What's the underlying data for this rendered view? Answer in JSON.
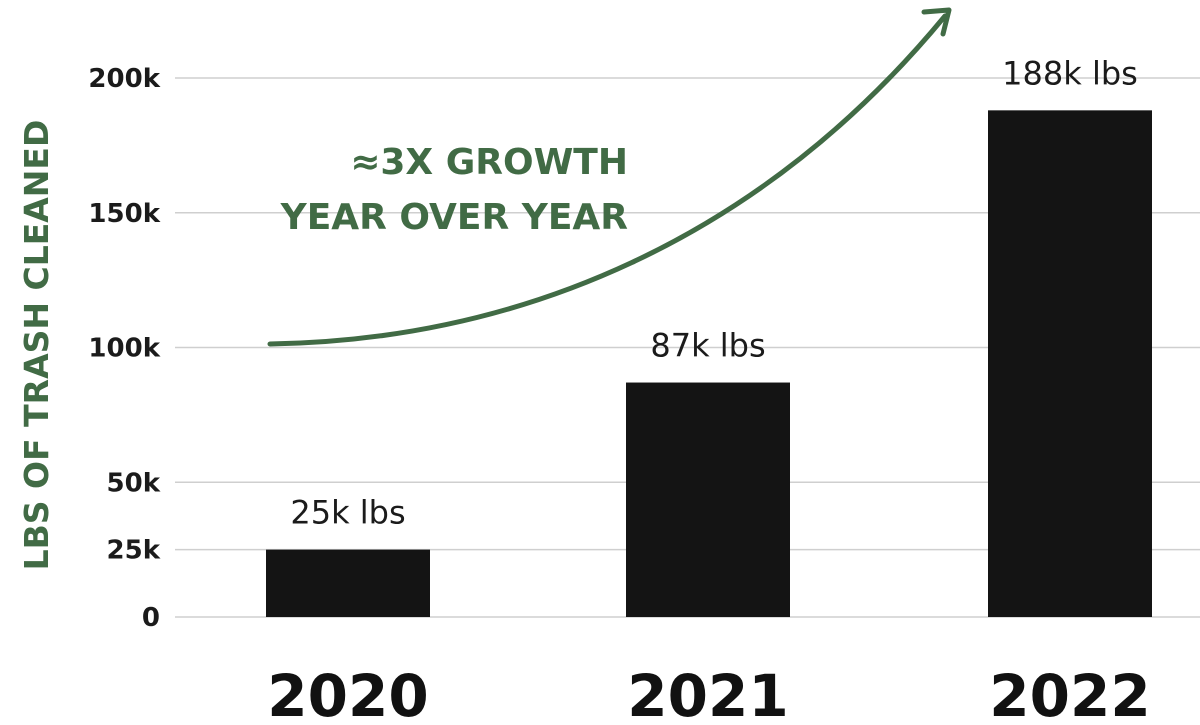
{
  "chart_data": {
    "type": "bar",
    "categories": [
      "2020",
      "2021",
      "2022"
    ],
    "values": [
      25000,
      87000,
      188000
    ],
    "data_labels": [
      "25k lbs",
      "87k lbs",
      "188k lbs"
    ],
    "xlabel": "",
    "ylabel": "LBS OF TRASH CLEANED",
    "ylim": [
      0,
      200000
    ],
    "yticks": [
      {
        "value": 0,
        "label": "0"
      },
      {
        "value": 25000,
        "label": "25k"
      },
      {
        "value": 50000,
        "label": "50k"
      },
      {
        "value": 100000,
        "label": "100k"
      },
      {
        "value": 150000,
        "label": "150k"
      },
      {
        "value": 200000,
        "label": "200k"
      }
    ],
    "annotation": {
      "line1": "≈3X GROWTH",
      "line2": "YEAR OVER YEAR"
    },
    "grid": true,
    "legend": "none"
  },
  "colors": {
    "bar": "#141414",
    "accent": "#416b45",
    "grid": "#cfcfcf",
    "text": "#1b1b1b"
  },
  "icons": {
    "trend": "arrow-up-right-icon"
  }
}
